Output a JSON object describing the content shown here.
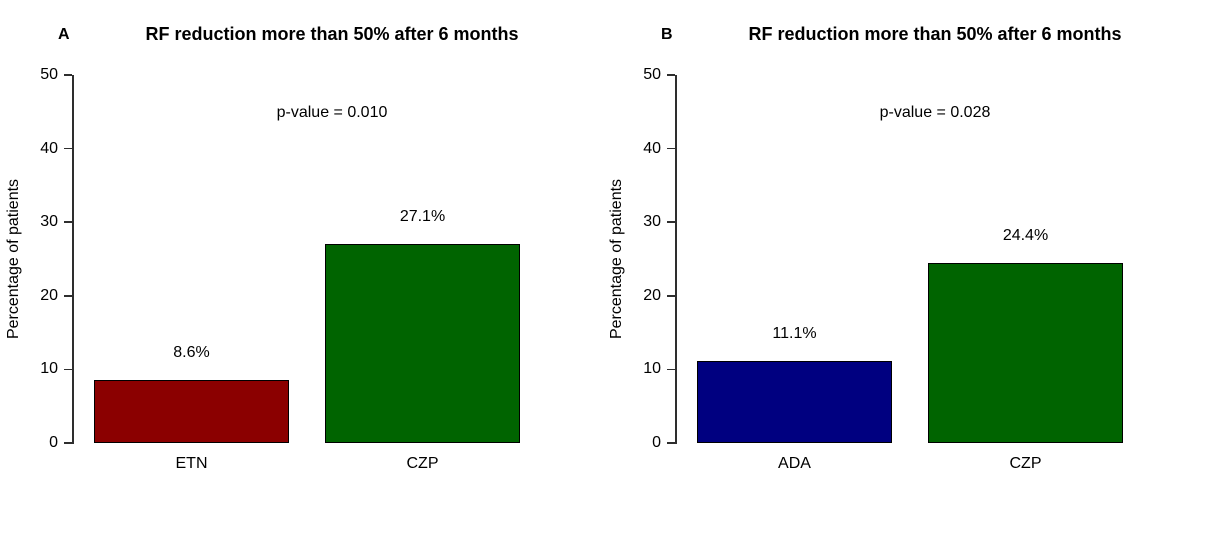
{
  "figure": {
    "background": "#ffffff",
    "axis_color": "#2e2e2e"
  },
  "chart_data": [
    {
      "type": "bar",
      "panel_label": "A",
      "title": "RF reduction more than 50% after 6 months",
      "annotation": "p-value = 0.010",
      "xlabel": "",
      "ylabel": "Percentage of patients",
      "ylim": [
        0,
        50
      ],
      "yticks": [
        0,
        10,
        20,
        30,
        40,
        50
      ],
      "categories": [
        "ETN",
        "CZP"
      ],
      "values": [
        8.6,
        27.1
      ],
      "value_labels": [
        "8.6%",
        "27.1%"
      ],
      "bar_colors": [
        "#8B0000",
        "#006400"
      ],
      "grid": false,
      "legend_position": "none"
    },
    {
      "type": "bar",
      "panel_label": "B",
      "title": "RF reduction more than 50% after 6 months",
      "annotation": "p-value = 0.028",
      "xlabel": "",
      "ylabel": "Percentage of patients",
      "ylim": [
        0,
        50
      ],
      "yticks": [
        0,
        10,
        20,
        30,
        40,
        50
      ],
      "categories": [
        "ADA",
        "CZP"
      ],
      "values": [
        11.1,
        24.4
      ],
      "value_labels": [
        "11.1%",
        "24.4%"
      ],
      "bar_colors": [
        "#000080",
        "#006400"
      ],
      "grid": false,
      "legend_position": "none"
    }
  ]
}
